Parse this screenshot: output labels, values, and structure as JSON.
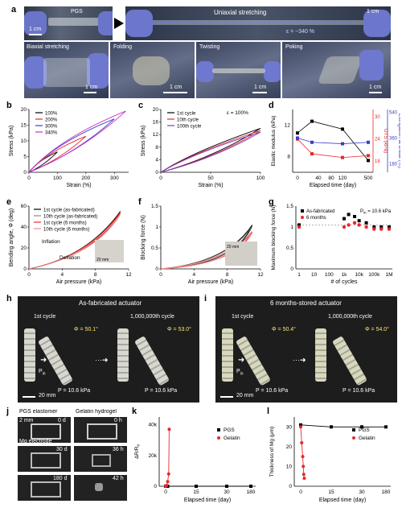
{
  "panel_labels": [
    "a",
    "b",
    "c",
    "d",
    "e",
    "f",
    "g",
    "h",
    "i",
    "j",
    "k",
    "l"
  ],
  "panel_a": {
    "top_left_text": "PGS",
    "top_left_scale": "1 cm",
    "top_right_text": "Uniaxial stretching",
    "strain_text": "ε = ~340 %",
    "top_right_scale": "1 cm",
    "bottom": [
      {
        "label": "Biaxial stretching",
        "scale": "1 cm"
      },
      {
        "label": "Folding",
        "scale": "1 cm"
      },
      {
        "label": "Twisting",
        "scale": "1 cm"
      },
      {
        "label": "Poking",
        "scale": "1 cm"
      }
    ]
  },
  "panel_h": {
    "title": "As-fabricated actuator",
    "first": "1st cycle",
    "last": "1,000,000th cycle",
    "phi1": "Φ = 50.1°",
    "phi2": "Φ = 53.0°",
    "pin": "P",
    "pin_sub": "in",
    "p1": "P = 10.6 kPa",
    "p2": "P = 10.6 kPa",
    "scale": "20 mm"
  },
  "panel_i": {
    "title": "6 months-stored actuator",
    "first": "1st cycle",
    "last": "1,000,000th cycle",
    "phi1": "Φ = 50.4°",
    "phi2": "Φ = 54.0°",
    "pin": "P",
    "pin_sub": "in",
    "p1": "P = 10.6 kPa",
    "p2": "P = 10.6 kPa",
    "scale": "20 mm"
  },
  "panel_j": {
    "left_title": "PGS elastomer",
    "right_title": "Gelatin hydrogel",
    "scale": "2 mm",
    "electrode": "Mg electrode",
    "left_days": [
      "0 d",
      "30 d",
      "180 d"
    ],
    "right_times": [
      "0 h",
      "36 h",
      "42 h"
    ]
  },
  "chart_data": [
    {
      "panel": "b",
      "type": "line",
      "xlabel": "Strain (%)",
      "ylabel": "Stress (kPa)",
      "xlim": [
        0,
        350
      ],
      "ylim": [
        0,
        20
      ],
      "xticks": [
        0,
        100,
        200,
        300
      ],
      "yticks": [
        0,
        5,
        10,
        15,
        20
      ],
      "series": [
        {
          "name": "100%",
          "color": "#000000",
          "x": [
            0,
            100
          ],
          "y": [
            0,
            6.5
          ]
        },
        {
          "name": "200%",
          "color": "#e8282a",
          "x": [
            0,
            200
          ],
          "y": [
            0,
            11.5
          ]
        },
        {
          "name": "300%",
          "color": "#3a3ac8",
          "x": [
            0,
            300
          ],
          "y": [
            0,
            17.0
          ]
        },
        {
          "name": "340%",
          "color": "#c832c8",
          "x": [
            0,
            340
          ],
          "y": [
            0,
            19.5
          ]
        }
      ]
    },
    {
      "panel": "c",
      "type": "line",
      "title": "ε = 100%",
      "xlabel": "Strain (%)",
      "ylabel": "Stress (kPa)",
      "xlim": [
        0,
        100
      ],
      "ylim": [
        0,
        20
      ],
      "xticks": [
        0,
        50,
        100
      ],
      "yticks": [
        0,
        4,
        8,
        12,
        16,
        20
      ],
      "series": [
        {
          "name": "1st cycle",
          "color": "#000000",
          "x": [
            0,
            100
          ],
          "y": [
            0,
            14
          ]
        },
        {
          "name": "10th cycle",
          "color": "#e8282a",
          "x": [
            0,
            100
          ],
          "y": [
            0,
            13.3
          ]
        },
        {
          "name": "100th cycle",
          "color": "#7a3cc8",
          "x": [
            0,
            100
          ],
          "y": [
            0,
            12.8
          ]
        }
      ]
    },
    {
      "panel": "d",
      "type": "line",
      "xlabel": "Elapsed time (day)",
      "ylabel": "Elastic modulus (kPa)",
      "ylabel_right1": "UTS (kPa)",
      "ylabel_right2": "Elongation at break (%)",
      "xticks": [
        "0",
        "40",
        "80",
        "120",
        "500"
      ],
      "yticks": [
        8,
        12
      ],
      "yticks_r1": [
        18,
        24,
        30
      ],
      "yticks_r2": [
        180,
        360,
        540
      ],
      "series": [
        {
          "name": "Elastic modulus",
          "color": "#000000",
          "x": [
            0,
            30,
            120,
            500
          ],
          "y": [
            11,
            12.5,
            11.5,
            7.5
          ]
        },
        {
          "name": "UTS",
          "color": "#e8282a",
          "x": [
            0,
            30,
            120,
            500
          ],
          "y": [
            24,
            20,
            19,
            19.5
          ]
        },
        {
          "name": "Elongation",
          "color": "#3a3ac8",
          "x": [
            0,
            30,
            120,
            500
          ],
          "y": [
            360,
            330,
            320,
            330
          ]
        }
      ]
    },
    {
      "panel": "e",
      "type": "line",
      "xlabel": "Air pressure (kPa)",
      "ylabel": "Bending angle, Φ (deg)",
      "xlim": [
        0,
        12
      ],
      "ylim": [
        0,
        60
      ],
      "xticks": [
        0,
        4,
        8,
        12
      ],
      "yticks": [
        0,
        20,
        40,
        60
      ],
      "annot": [
        "Inflation",
        "Deflation"
      ],
      "inset_scale": "20 mm",
      "series": [
        {
          "name": "1st cycle (as-fabricated)",
          "color": "#000000",
          "x": [
            0,
            11
          ],
          "y": [
            0,
            55
          ]
        },
        {
          "name": "10th cycle (as-fabricated)",
          "color": "#888888",
          "x": [
            0,
            11
          ],
          "y": [
            0,
            53
          ]
        },
        {
          "name": "1st cycle (6 months)",
          "color": "#e8282a",
          "x": [
            0,
            11
          ],
          "y": [
            0,
            54
          ]
        },
        {
          "name": "10th cycle (6 months)",
          "color": "#f08c8c",
          "x": [
            0,
            11
          ],
          "y": [
            0,
            52
          ]
        }
      ]
    },
    {
      "panel": "f",
      "type": "line",
      "xlabel": "Air pressure (kPa)",
      "ylabel": "Blocking force (N)",
      "xlim": [
        0,
        12
      ],
      "ylim": [
        0,
        1.5
      ],
      "xticks": [
        0,
        4,
        8,
        12
      ],
      "yticks": [
        0,
        0.5,
        1.0,
        1.5
      ],
      "inset_scale": "20 mm",
      "series": [
        {
          "name": "1st cycle",
          "color": "#000000",
          "x": [
            0,
            11
          ],
          "y": [
            0,
            1.05
          ]
        },
        {
          "name": "6 months",
          "color": "#e8282a",
          "x": [
            0,
            11
          ],
          "y": [
            0,
            0.95
          ]
        }
      ]
    },
    {
      "panel": "g",
      "type": "scatter",
      "xlabel": "# of cycles",
      "ylabel": "Maximum blocking force (N)",
      "ylim": [
        0,
        1.5
      ],
      "note": "P",
      "note_sub": "in",
      "note_rest": " = 10.6 kPa",
      "xticks": [
        "1",
        "10",
        "100",
        "1k",
        "10k",
        "100k",
        "1M"
      ],
      "yticks": [
        0,
        0.5,
        1.0,
        1.5
      ],
      "series": [
        {
          "name": "As-fabricated",
          "color": "#000000",
          "x": [
            1,
            1000,
            2000,
            5000,
            10000,
            30000,
            100000,
            300000,
            1000000
          ],
          "y": [
            1.05,
            1.2,
            1.3,
            1.25,
            1.15,
            1.1,
            1.0,
            1.0,
            1.0
          ]
        },
        {
          "name": "6 months",
          "color": "#e8282a",
          "x": [
            1,
            1000,
            2000,
            5000,
            10000,
            30000,
            100000,
            300000,
            1000000
          ],
          "y": [
            1.0,
            1.0,
            1.05,
            1.1,
            1.05,
            1.0,
            0.95,
            0.95,
            0.95
          ]
        }
      ]
    },
    {
      "panel": "k",
      "type": "line",
      "xlabel": "Elapsed time (day)",
      "ylabel": "ΔR/R",
      "ylabel_sub": "0",
      "ylim": [
        0,
        45000
      ],
      "xticks": [
        "0",
        "15",
        "30",
        "180"
      ],
      "yticks": [
        "0",
        "20k",
        "40k"
      ],
      "series": [
        {
          "name": "PGS",
          "color": "#000000",
          "x": [
            0,
            1,
            15,
            30,
            180
          ],
          "y": [
            0,
            0,
            0,
            0,
            0
          ]
        },
        {
          "name": "Gelatin",
          "color": "#e8282a",
          "x": [
            0,
            0.5,
            1,
            1.5,
            1.75
          ],
          "y": [
            0,
            500,
            3000,
            8000,
            37000
          ]
        }
      ]
    },
    {
      "panel": "l",
      "type": "line",
      "xlabel": "Elapsed time (day)",
      "ylabel": "Thickness of Mg (μm)",
      "ylim": [
        0,
        35
      ],
      "xticks": [
        "0",
        "15",
        "30",
        "180"
      ],
      "yticks": [
        0,
        10,
        20,
        30
      ],
      "series": [
        {
          "name": "PGS",
          "color": "#000000",
          "x": [
            0,
            15,
            30,
            180
          ],
          "y": [
            31,
            30,
            30,
            30
          ]
        },
        {
          "name": "Gelatin",
          "color": "#e8282a",
          "x": [
            0,
            0.5,
            1,
            1.25,
            1.5,
            1.75
          ],
          "y": [
            30,
            22,
            15,
            10,
            6,
            4
          ]
        }
      ]
    }
  ]
}
